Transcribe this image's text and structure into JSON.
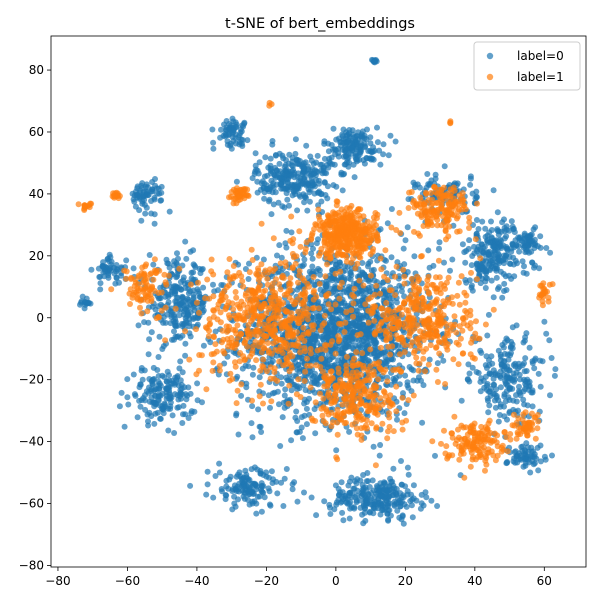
{
  "chart_data": {
    "type": "scatter",
    "title": "t-SNE of bert_embeddings",
    "xlabel": "",
    "ylabel": "",
    "xlim": [
      -82,
      72
    ],
    "ylim": [
      -80.5,
      91
    ],
    "xticks": [
      -80,
      -60,
      -40,
      -20,
      0,
      20,
      40,
      60
    ],
    "yticks": [
      -80,
      -60,
      -40,
      -20,
      0,
      20,
      40,
      60,
      80
    ],
    "grid": false,
    "legend_position": "top-right",
    "series": [
      {
        "name": "label=0",
        "color": "#1f77b4",
        "clusters": [
          {
            "x": 0,
            "y": -5,
            "spread": [
              25,
              25
            ],
            "count": 1700
          },
          {
            "x": -12,
            "y": 45,
            "spread": [
              10,
              8
            ],
            "count": 260
          },
          {
            "x": 5,
            "y": 55,
            "spread": [
              8,
              6
            ],
            "count": 150
          },
          {
            "x": 12,
            "y": -58,
            "spread": [
              12,
              6
            ],
            "count": 240
          },
          {
            "x": -25,
            "y": -55,
            "spread": [
              10,
              6
            ],
            "count": 130
          },
          {
            "x": 45,
            "y": 20,
            "spread": [
              10,
              10
            ],
            "count": 220
          },
          {
            "x": 50,
            "y": -20,
            "spread": [
              10,
              12
            ],
            "count": 200
          },
          {
            "x": -45,
            "y": 5,
            "spread": [
              8,
              12
            ],
            "count": 240
          },
          {
            "x": -50,
            "y": -25,
            "spread": [
              8,
              8
            ],
            "count": 160
          },
          {
            "x": -55,
            "y": 40,
            "spread": [
              5,
              5
            ],
            "count": 70
          },
          {
            "x": -30,
            "y": 60,
            "spread": [
              4,
              4
            ],
            "count": 60
          },
          {
            "x": 55,
            "y": 25,
            "spread": [
              4,
              4
            ],
            "count": 50
          },
          {
            "x": 55,
            "y": -45,
            "spread": [
              5,
              4
            ],
            "count": 60
          },
          {
            "x": -65,
            "y": 15,
            "spread": [
              4,
              4
            ],
            "count": 50
          },
          {
            "x": -72,
            "y": 5,
            "spread": [
              1.5,
              2
            ],
            "count": 14
          },
          {
            "x": 11,
            "y": 83,
            "spread": [
              0.8,
              0.6
            ],
            "count": 10
          },
          {
            "x": 32,
            "y": 40,
            "spread": [
              8,
              6
            ],
            "count": 90
          }
        ]
      },
      {
        "name": "label=1",
        "color": "#ff7f0e",
        "clusters": [
          {
            "x": 3,
            "y": 27,
            "spread": [
              8,
              7
            ],
            "count": 380
          },
          {
            "x": 30,
            "y": 35,
            "spread": [
              8,
              7
            ],
            "count": 160
          },
          {
            "x": -20,
            "y": 0,
            "spread": [
              18,
              18
            ],
            "count": 520
          },
          {
            "x": 25,
            "y": 0,
            "spread": [
              15,
              16
            ],
            "count": 360
          },
          {
            "x": 40,
            "y": -40,
            "spread": [
              8,
              6
            ],
            "count": 140
          },
          {
            "x": 5,
            "y": -25,
            "spread": [
              12,
              12
            ],
            "count": 260
          },
          {
            "x": -28,
            "y": 40,
            "spread": [
              2.5,
              2
            ],
            "count": 40
          },
          {
            "x": -63,
            "y": 39.5,
            "spread": [
              1.5,
              1
            ],
            "count": 14
          },
          {
            "x": -72,
            "y": 36,
            "spread": [
              1.5,
              1
            ],
            "count": 14
          },
          {
            "x": 60,
            "y": 8,
            "spread": [
              2,
              3
            ],
            "count": 22
          },
          {
            "x": -55,
            "y": 10,
            "spread": [
              6,
              8
            ],
            "count": 80
          },
          {
            "x": 55,
            "y": -35,
            "spread": [
              4,
              4
            ],
            "count": 40
          },
          {
            "x": -19,
            "y": 69,
            "spread": [
              0.5,
              0.5
            ],
            "count": 3
          },
          {
            "x": 33,
            "y": 63,
            "spread": [
              0.5,
              0.5
            ],
            "count": 3
          }
        ]
      }
    ]
  }
}
